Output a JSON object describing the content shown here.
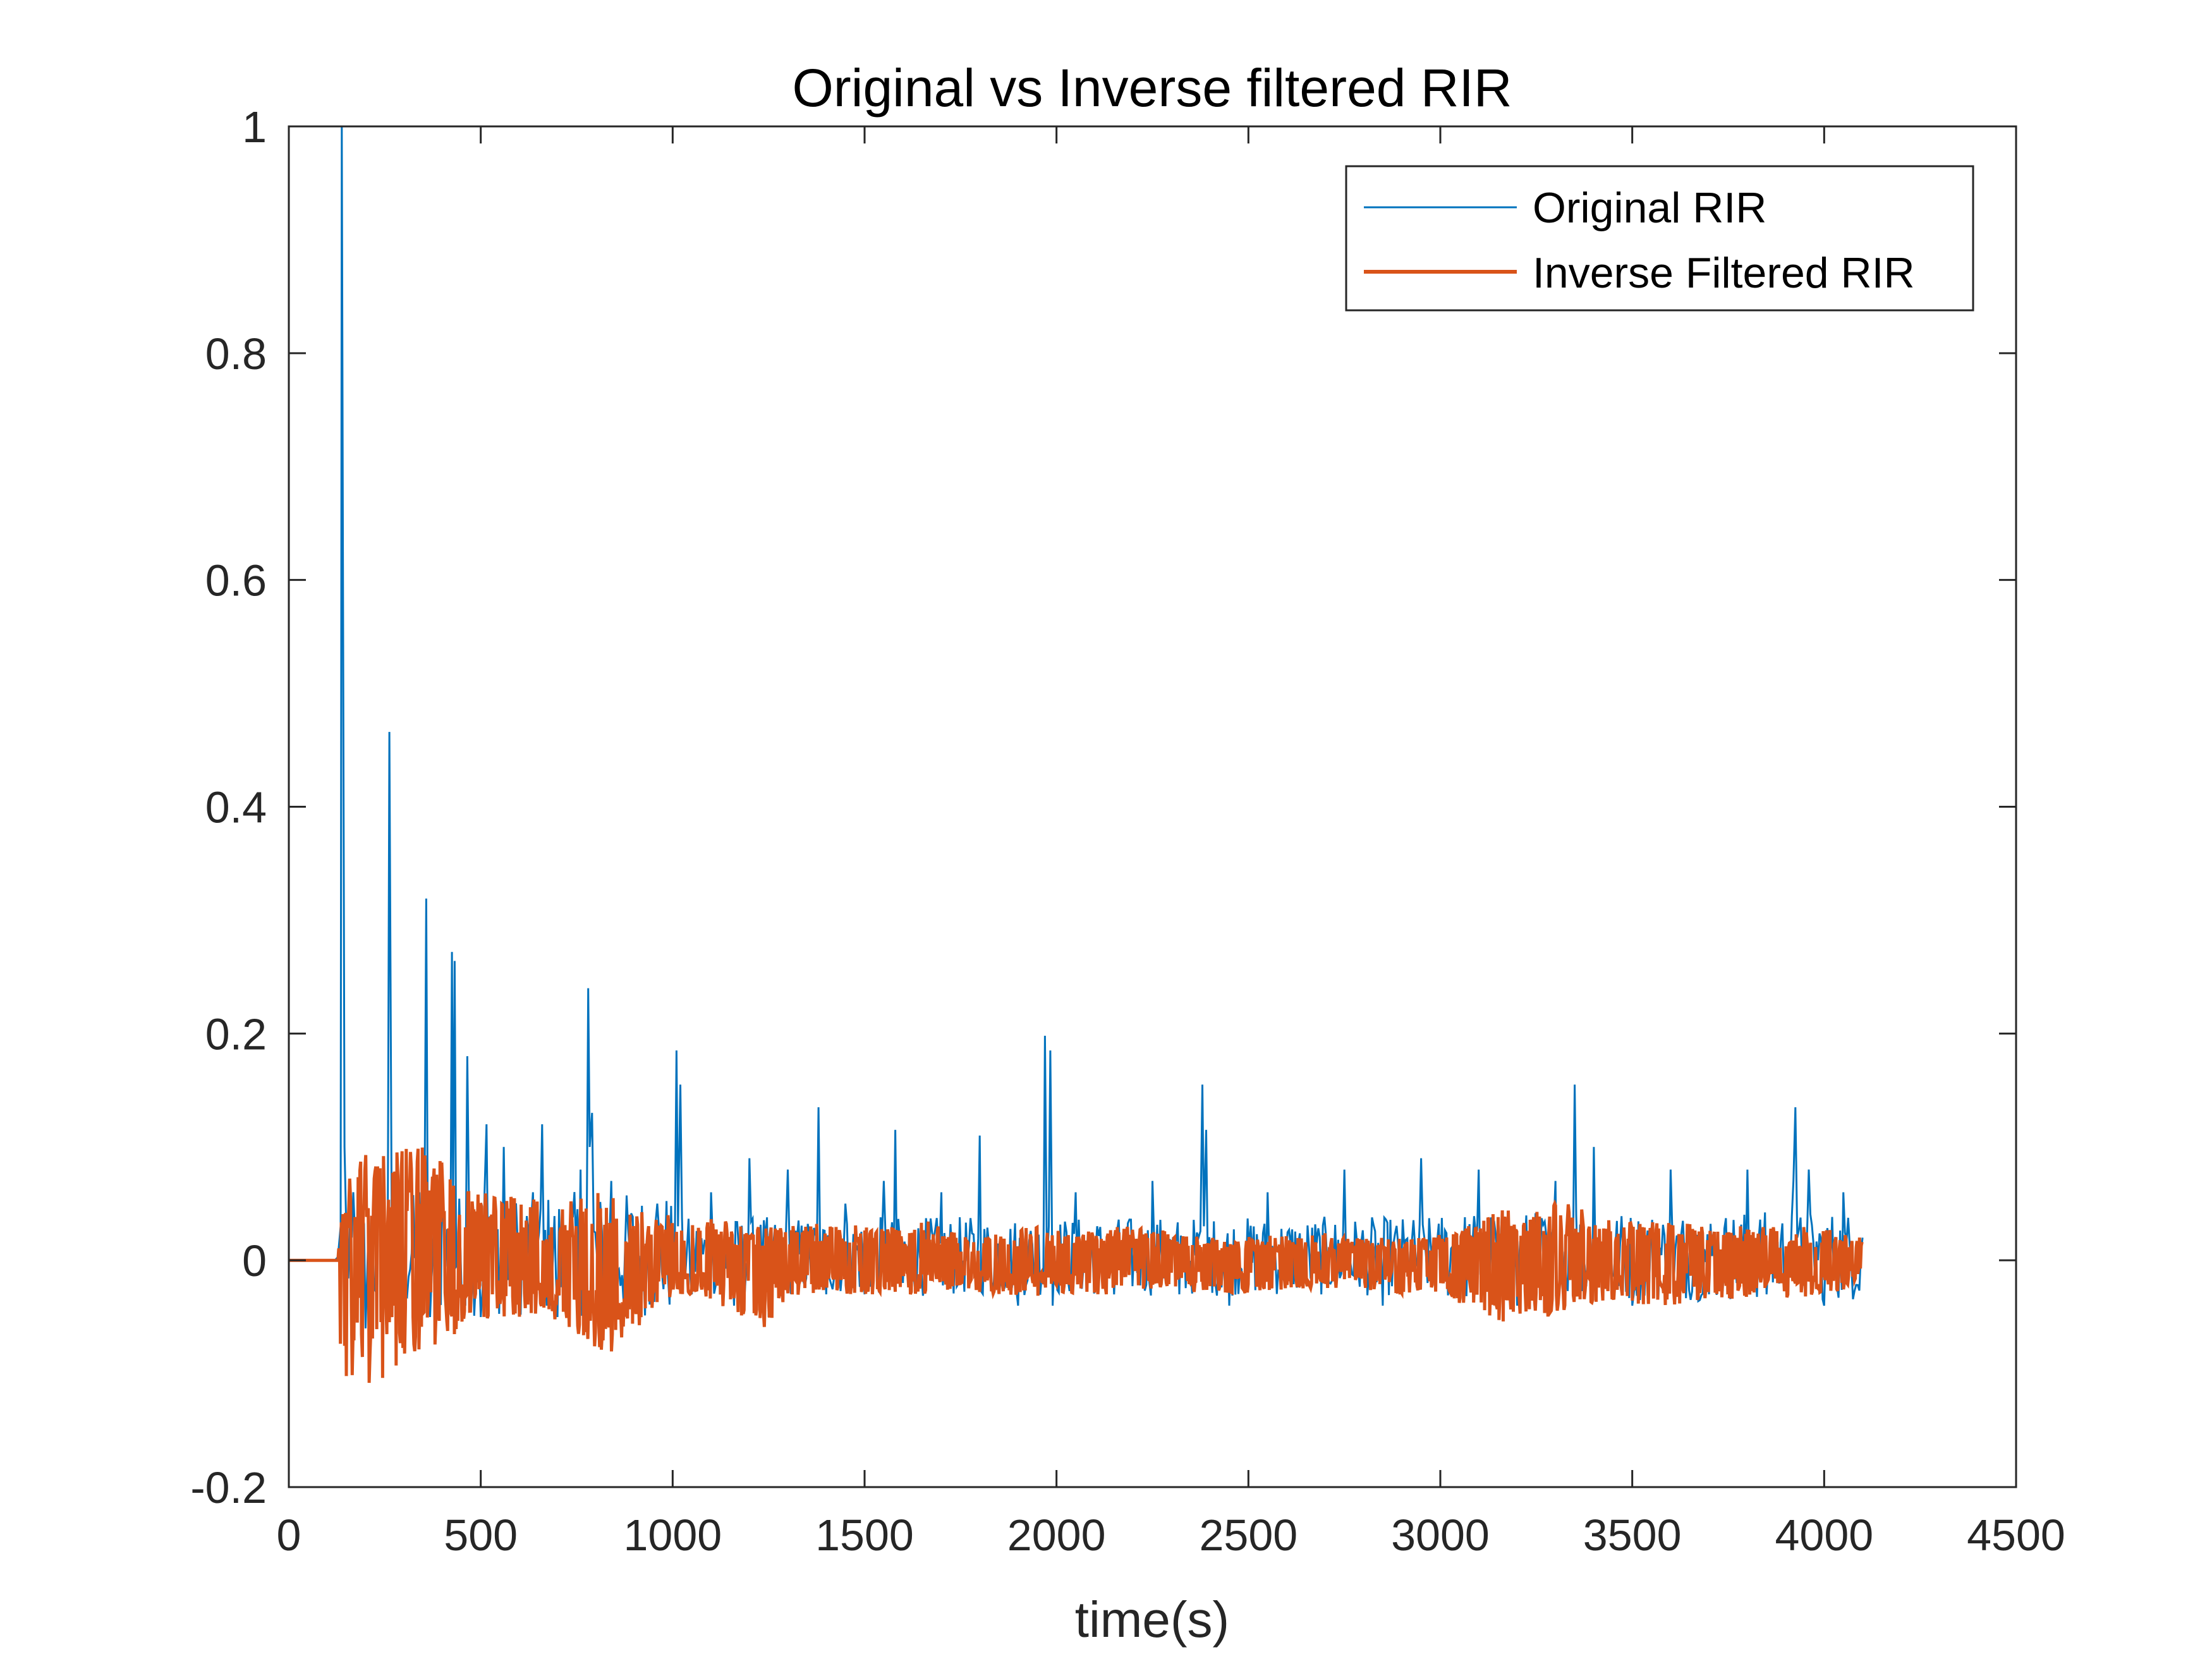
{
  "chart_data": {
    "type": "line",
    "title": "Original vs Inverse filtered RIR",
    "xlabel": "time(s)",
    "ylabel": "",
    "xlim": [
      0,
      4500
    ],
    "ylim": [
      -0.2,
      1
    ],
    "xticks": [
      0,
      500,
      1000,
      1500,
      2000,
      2500,
      3000,
      3500,
      4000,
      4500
    ],
    "yticks": [
      -0.2,
      0,
      0.2,
      0.4,
      0.6,
      0.8,
      1
    ],
    "xtick_labels": [
      "0",
      "500",
      "1000",
      "1500",
      "2000",
      "2500",
      "3000",
      "3500",
      "4000",
      "4500"
    ],
    "ytick_labels": [
      "-0.2",
      "0",
      "0.2",
      "0.4",
      "0.6",
      "0.8",
      "1"
    ],
    "grid": false,
    "box": true,
    "legend_position": "top-right",
    "colors": {
      "original": "#0072BD",
      "inverse": "#D95319",
      "axis": "#262626"
    },
    "series": [
      {
        "name": "Original RIR",
        "color": "#0072BD",
        "x": [
          0,
          120,
          128,
          135,
          138,
          145,
          160,
          200,
          258,
          262,
          268,
          300,
          340,
          358,
          362,
          368,
          400,
          425,
          428,
          432,
          460,
          465,
          470,
          500,
          510,
          515,
          520,
          560,
          600,
          660,
          700,
          760,
          780,
          784,
          790,
          820,
          840,
          900,
          960,
          1000,
          1010,
          1014,
          1020,
          1050,
          1100,
          1160,
          1200,
          1250,
          1300,
          1380,
          1400,
          1450,
          1500,
          1550,
          1580,
          1600,
          1700,
          1800,
          1900,
          1970,
          1980,
          1984,
          1990,
          2050,
          2150,
          2250,
          2320,
          2370,
          2380,
          2384,
          2390,
          2450,
          2550,
          2650,
          2750,
          2850,
          2950,
          3000,
          3100,
          3200,
          3300,
          3340,
          3350,
          3354,
          3360,
          3400,
          3500,
          3600,
          3700,
          3800,
          3850,
          3920,
          3925,
          3930,
          3960,
          4000,
          4050,
          4100
        ],
        "y": [
          0,
          0,
          0.003,
          0.03,
          1.0,
          0.1,
          0.04,
          -0.06,
          0.05,
          0.466,
          0.03,
          -0.05,
          0.06,
          0.319,
          0.02,
          -0.05,
          0.08,
          0.272,
          0.05,
          0.264,
          -0.04,
          0.18,
          0.03,
          -0.05,
          0.06,
          0.12,
          -0.03,
          0.1,
          -0.04,
          0.12,
          -0.05,
          0.08,
          0.24,
          0.1,
          0.13,
          -0.06,
          0.07,
          -0.04,
          0.05,
          -0.02,
          0.185,
          0.03,
          0.155,
          -0.03,
          0.06,
          -0.04,
          0.09,
          -0.05,
          0.08,
          0.135,
          -0.03,
          0.05,
          -0.03,
          0.07,
          0.115,
          -0.02,
          0.06,
          0.11,
          -0.04,
          0.198,
          0.03,
          0.185,
          -0.04,
          0.06,
          -0.03,
          0.07,
          -0.03,
          0.02,
          0.155,
          0.03,
          0.115,
          -0.04,
          0.06,
          -0.02,
          0.08,
          -0.04,
          0.09,
          -0.02,
          0.08,
          -0.04,
          0.07,
          0.03,
          0.155,
          0.04,
          -0.03,
          0.1,
          -0.04,
          0.08,
          -0.03,
          0.08,
          -0.03,
          0.07,
          0.135,
          0.02,
          0.08,
          -0.04,
          0.06,
          0.02
        ]
      },
      {
        "name": "Inverse Filtered RIR",
        "color": "#D95319",
        "x": [
          0,
          120,
          128,
          135,
          150,
          180,
          220,
          260,
          300,
          360,
          420,
          480,
          540,
          600,
          660,
          720,
          780,
          820,
          880,
          940,
          1000,
          1060,
          1120,
          1180,
          1240,
          1300,
          1360,
          1420,
          1500,
          1580,
          1660,
          1740,
          1820,
          1900,
          1980,
          2060,
          2140,
          2220,
          2300,
          2380,
          2460,
          2540,
          2620,
          2700,
          2780,
          2860,
          2940,
          3020,
          3100,
          3160,
          3220,
          3280,
          3340,
          3400,
          3460,
          3520,
          3600,
          3680,
          3760,
          3840,
          3920,
          4000,
          4060,
          4100
        ],
        "upper": [
          0,
          0,
          0.005,
          0.03,
          0.09,
          0.09,
          0.1,
          0.1,
          0.11,
          0.1,
          0.08,
          0.06,
          0.06,
          0.06,
          0.05,
          0.05,
          0.06,
          0.06,
          0.05,
          0.04,
          0.04,
          0.03,
          0.04,
          0.03,
          0.03,
          0.03,
          0.035,
          0.035,
          0.03,
          0.03,
          0.035,
          0.025,
          0.02,
          0.03,
          0.03,
          0.025,
          0.03,
          0.03,
          0.025,
          0.02,
          0.02,
          0.025,
          0.02,
          0.025,
          0.02,
          0.02,
          0.02,
          0.025,
          0.035,
          0.045,
          0.05,
          0.06,
          0.05,
          0.04,
          0.035,
          0.035,
          0.035,
          0.03,
          0.03,
          0.03,
          0.03,
          0.03,
          0.025,
          0.02
        ],
        "lower": [
          0,
          0,
          -0.005,
          -0.11,
          -0.11,
          -0.11,
          -0.11,
          -0.105,
          -0.09,
          -0.08,
          -0.07,
          -0.06,
          -0.05,
          -0.05,
          -0.05,
          -0.06,
          -0.07,
          -0.09,
          -0.07,
          -0.05,
          -0.03,
          -0.03,
          -0.04,
          -0.05,
          -0.06,
          -0.04,
          -0.03,
          -0.03,
          -0.03,
          -0.03,
          -0.03,
          -0.025,
          -0.03,
          -0.035,
          -0.03,
          -0.03,
          -0.03,
          -0.025,
          -0.025,
          -0.03,
          -0.03,
          -0.03,
          -0.025,
          -0.025,
          -0.025,
          -0.03,
          -0.03,
          -0.035,
          -0.045,
          -0.055,
          -0.05,
          -0.05,
          -0.045,
          -0.04,
          -0.035,
          -0.04,
          -0.04,
          -0.035,
          -0.035,
          -0.03,
          -0.035,
          -0.03,
          -0.025,
          -0.02
        ]
      }
    ]
  }
}
